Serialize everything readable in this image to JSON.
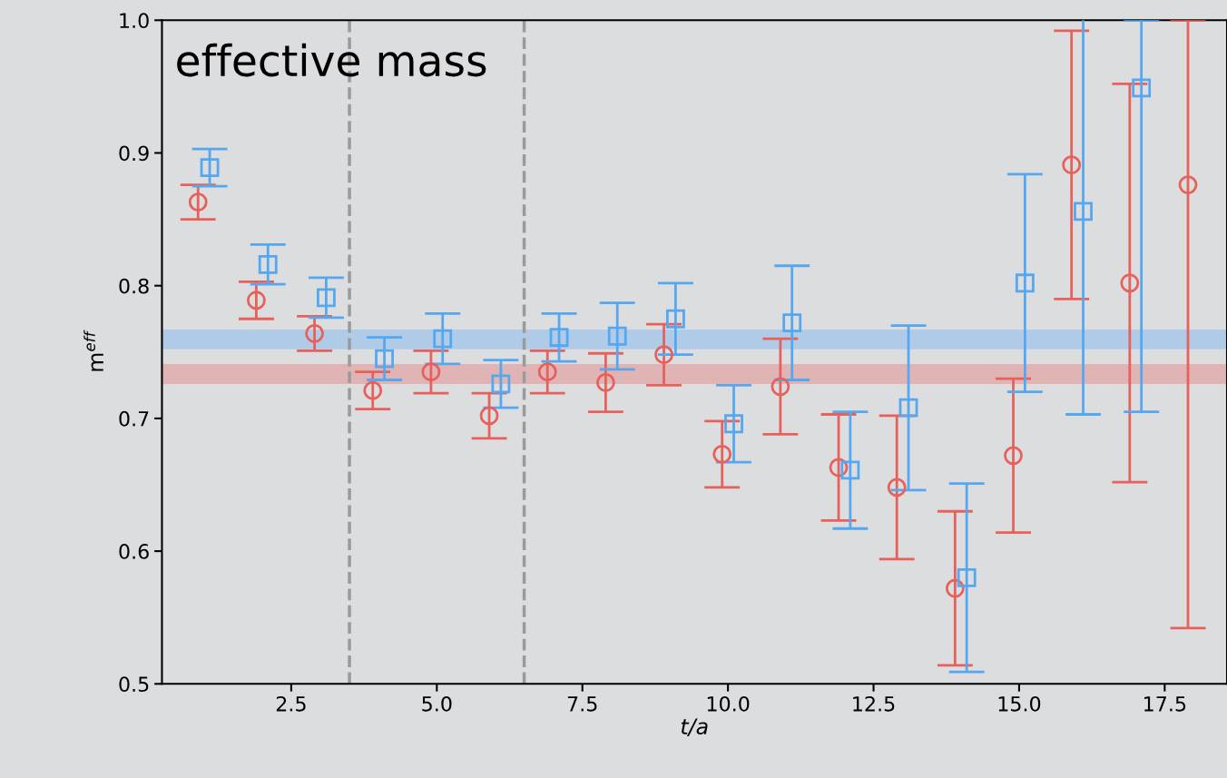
{
  "chart_data": {
    "type": "scatter",
    "title": "effective mass",
    "xlabel": "t/a",
    "ylabel": "m$^{eff}$",
    "series": [
      {
        "color": "#e8605a",
        "marker": "circle",
        "x": [
          0.9,
          1.9,
          2.9,
          3.9,
          4.9,
          5.9,
          6.9,
          7.9,
          8.9,
          9.9,
          10.9,
          11.9,
          12.9,
          13.9,
          14.9,
          15.9,
          16.9,
          17.9
        ],
        "values": [
          0.863,
          0.789,
          0.764,
          0.721,
          0.735,
          0.702,
          0.735,
          0.727,
          0.748,
          0.673,
          0.724,
          0.663,
          0.648,
          0.572,
          0.672,
          0.891,
          0.802,
          0.876
        ],
        "errors": [
          0.013,
          0.014,
          0.013,
          0.014,
          0.016,
          0.017,
          0.016,
          0.022,
          0.023,
          0.025,
          0.036,
          0.04,
          0.054,
          0.058,
          0.058,
          0.101,
          0.15,
          [
            0.542,
            1.0
          ]
        ]
      },
      {
        "color": "#55a7f0",
        "marker": "square",
        "x": [
          1.1,
          2.1,
          3.1,
          4.1,
          5.1,
          6.1,
          7.1,
          8.1,
          9.1,
          10.1,
          11.1,
          12.1,
          13.1,
          14.1,
          15.1,
          16.1,
          17.1
        ],
        "values": [
          0.889,
          0.816,
          0.791,
          0.745,
          0.76,
          0.726,
          0.761,
          0.762,
          0.775,
          0.696,
          0.772,
          0.661,
          0.708,
          0.58,
          0.802,
          0.856,
          0.949
        ],
        "errors": [
          0.014,
          0.015,
          0.015,
          0.016,
          0.019,
          0.018,
          0.018,
          0.025,
          0.027,
          0.029,
          0.043,
          0.044,
          0.062,
          0.071,
          0.082,
          0.153,
          [
            0.705,
            1.0
          ]
        ]
      }
    ],
    "bands": [
      {
        "axis": "y",
        "from": 0.752,
        "to": 0.767,
        "color": "#b0cbe8"
      },
      {
        "axis": "y",
        "from": 0.726,
        "to": 0.741,
        "color": "#e0b3b5"
      }
    ],
    "ref_lines": [
      {
        "axis": "x",
        "value": 3.5,
        "color": "#9a9a9a",
        "line_style": "dashed"
      },
      {
        "axis": "x",
        "value": 6.5,
        "color": "#9a9a9a",
        "line_style": "dashed"
      }
    ],
    "xlim": [
      0.28,
      18.57
    ],
    "ylim": [
      0.5,
      1.0
    ],
    "xticks": [
      {
        "value": 2.5,
        "label": "2.5"
      },
      {
        "value": 5.0,
        "label": "5.0"
      },
      {
        "value": 7.5,
        "label": "7.5"
      },
      {
        "value": 10.0,
        "label": "10.0"
      },
      {
        "value": 12.5,
        "label": "12.5"
      },
      {
        "value": 15.0,
        "label": "15.0"
      },
      {
        "value": 17.5,
        "label": "17.5"
      }
    ],
    "yticks": [
      {
        "value": 0.5,
        "label": "0.5"
      },
      {
        "value": 0.6,
        "label": "0.6"
      },
      {
        "value": 0.7,
        "label": "0.7"
      },
      {
        "value": 0.8,
        "label": "0.8"
      },
      {
        "value": 0.9,
        "label": "0.9"
      },
      {
        "value": 1.0,
        "label": "1.0"
      }
    ],
    "grid": false,
    "legend": false
  }
}
